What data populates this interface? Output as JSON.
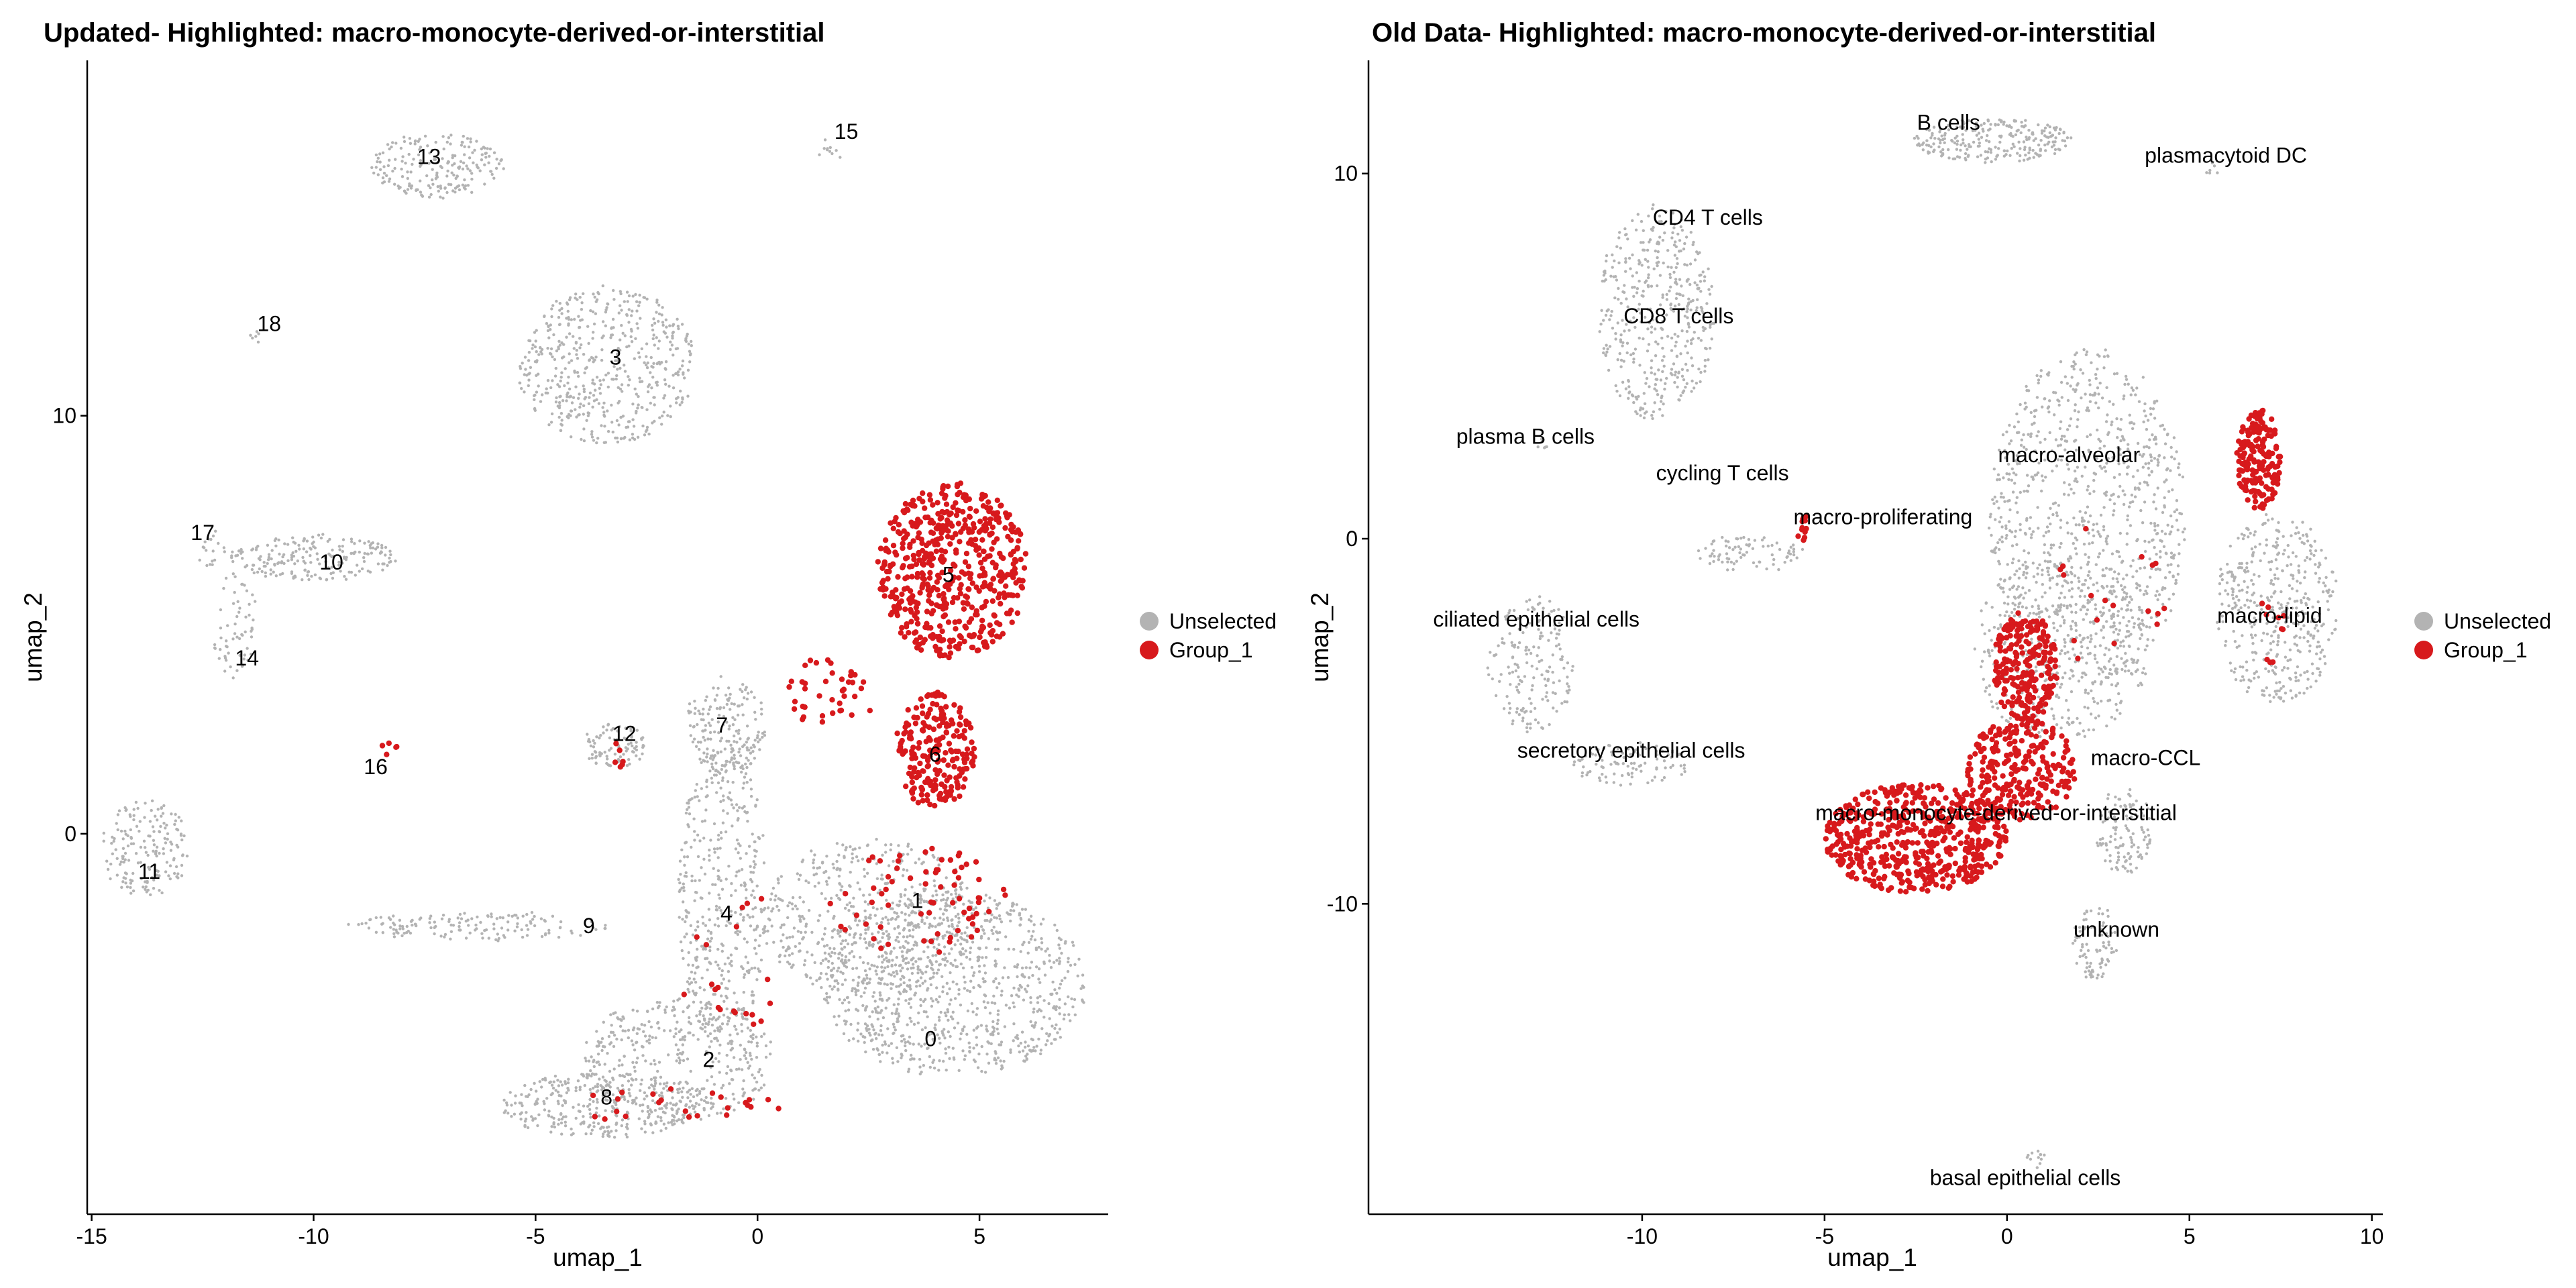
{
  "chart_data": [
    {
      "type": "scatter",
      "title": "Updated- Highlighted: macro-monocyte-derived-or-interstitial",
      "xlabel": "umap_1",
      "ylabel": "umap_2",
      "xlim": [
        -15.1,
        7.9
      ],
      "ylim": [
        -9.1,
        18.5
      ],
      "xticks": [
        -15,
        -10,
        -5,
        0,
        5
      ],
      "yticks": [
        0,
        10
      ],
      "grid": false,
      "legend": {
        "position": "right",
        "entries": [
          {
            "name": "Unselected",
            "color": "#b3b3b3"
          },
          {
            "name": "Group_1",
            "color": "#d7191c"
          }
        ]
      },
      "cluster_labels": [
        {
          "text": "0",
          "x": 3.9,
          "y": -4.9
        },
        {
          "text": "1",
          "x": 3.6,
          "y": -1.6
        },
        {
          "text": "2",
          "x": -1.1,
          "y": -5.4
        },
        {
          "text": "3",
          "x": -3.2,
          "y": 11.4
        },
        {
          "text": "4",
          "x": -0.7,
          "y": -1.9
        },
        {
          "text": "5",
          "x": 4.3,
          "y": 6.2
        },
        {
          "text": "6",
          "x": 4.0,
          "y": 1.9
        },
        {
          "text": "7",
          "x": -0.8,
          "y": 2.6
        },
        {
          "text": "8",
          "x": -3.4,
          "y": -6.3
        },
        {
          "text": "9",
          "x": -3.8,
          "y": -2.2
        },
        {
          "text": "10",
          "x": -9.6,
          "y": 6.5
        },
        {
          "text": "11",
          "x": -13.7,
          "y": -0.9
        },
        {
          "text": "12",
          "x": -3.0,
          "y": 2.4
        },
        {
          "text": "13",
          "x": -7.4,
          "y": 16.2
        },
        {
          "text": "14",
          "x": -11.5,
          "y": 4.2
        },
        {
          "text": "15",
          "x": 2.0,
          "y": 16.8
        },
        {
          "text": "16",
          "x": -8.6,
          "y": 1.6
        },
        {
          "text": "17",
          "x": -12.5,
          "y": 7.2
        },
        {
          "text": "18",
          "x": -11.0,
          "y": 12.2
        }
      ],
      "clusters_unselected": [
        {
          "cx": 4.4,
          "cy": -3.6,
          "rx": 3.0,
          "ry": 2.2,
          "n": 900
        },
        {
          "cx": 2.5,
          "cy": -2.0,
          "rx": 2.4,
          "ry": 1.9,
          "n": 500
        },
        {
          "cx": -0.8,
          "cy": -1.5,
          "rx": 1.0,
          "ry": 3.6,
          "n": 420
        },
        {
          "cx": -0.7,
          "cy": 2.6,
          "rx": 0.9,
          "ry": 1.2,
          "n": 180
        },
        {
          "cx": -1.8,
          "cy": -5.4,
          "rx": 2.2,
          "ry": 1.5,
          "n": 380
        },
        {
          "cx": -3.5,
          "cy": -6.5,
          "rx": 2.3,
          "ry": 0.8,
          "n": 320
        },
        {
          "cx": -3.4,
          "cy": 11.2,
          "rx": 2.0,
          "ry": 1.9,
          "n": 520
        },
        {
          "cx": -6.3,
          "cy": -2.2,
          "rx": 3.0,
          "ry": 0.35,
          "n": 150
        },
        {
          "cx": -3.2,
          "cy": 2.1,
          "rx": 0.7,
          "ry": 0.55,
          "n": 90
        },
        {
          "cx": -10.0,
          "cy": 6.6,
          "rx": 1.9,
          "ry": 0.55,
          "n": 200
        },
        {
          "cx": -13.8,
          "cy": -0.3,
          "rx": 1.0,
          "ry": 1.2,
          "n": 170
        },
        {
          "cx": -7.2,
          "cy": 16.0,
          "rx": 1.5,
          "ry": 0.8,
          "n": 200
        },
        {
          "cx": -11.8,
          "cy": 5.0,
          "rx": 0.5,
          "ry": 1.3,
          "n": 60
        },
        {
          "cx": 1.6,
          "cy": 16.3,
          "rx": 0.3,
          "ry": 0.3,
          "n": 10
        },
        {
          "cx": -12.3,
          "cy": 6.8,
          "rx": 0.3,
          "ry": 0.5,
          "n": 18
        },
        {
          "cx": -11.3,
          "cy": 11.9,
          "rx": 0.15,
          "ry": 0.15,
          "n": 6
        }
      ],
      "clusters_selected": [
        {
          "cx": 4.4,
          "cy": 6.3,
          "rx": 1.7,
          "ry": 2.1,
          "n": 550
        },
        {
          "cx": 4.0,
          "cy": 2.0,
          "rx": 0.9,
          "ry": 1.4,
          "n": 220
        },
        {
          "cx": 3.6,
          "cy": -1.6,
          "rx": 2.0,
          "ry": 1.3,
          "n": 70
        },
        {
          "cx": 1.6,
          "cy": 3.4,
          "rx": 1.2,
          "ry": 0.8,
          "n": 40
        },
        {
          "cx": -2.0,
          "cy": -6.5,
          "rx": 2.6,
          "ry": 0.4,
          "n": 24
        },
        {
          "cx": -3.1,
          "cy": 1.8,
          "rx": 0.2,
          "ry": 0.4,
          "n": 6
        },
        {
          "cx": -8.3,
          "cy": 2.0,
          "rx": 0.2,
          "ry": 0.2,
          "n": 5
        },
        {
          "cx": -0.4,
          "cy": -3.0,
          "rx": 1.5,
          "ry": 1.6,
          "n": 20
        }
      ]
    },
    {
      "type": "scatter",
      "title": "Old Data- Highlighted: macro-monocyte-derived-or-interstitial",
      "xlabel": "umap_1",
      "ylabel": "umap_2",
      "xlim": [
        -17.5,
        10.3
      ],
      "ylim": [
        -18.5,
        13.1
      ],
      "xticks": [
        -10,
        -5,
        0,
        5,
        10
      ],
      "yticks": [
        -10,
        0,
        10
      ],
      "grid": false,
      "legend": {
        "position": "right",
        "entries": [
          {
            "name": "Unselected",
            "color": "#b3b3b3"
          },
          {
            "name": "Group_1",
            "color": "#d7191c"
          }
        ]
      },
      "cluster_labels": [
        {
          "text": "B cells",
          "x": -1.6,
          "y": 11.4
        },
        {
          "text": "plasmacytoid DC",
          "x": 6.0,
          "y": 10.5
        },
        {
          "text": "CD4 T cells",
          "x": -8.2,
          "y": 8.8
        },
        {
          "text": "CD8 T cells",
          "x": -9.0,
          "y": 6.1
        },
        {
          "text": "plasma B cells",
          "x": -13.2,
          "y": 2.8
        },
        {
          "text": "cycling T cells",
          "x": -7.8,
          "y": 1.8
        },
        {
          "text": "macro-alveolar",
          "x": 1.7,
          "y": 2.3
        },
        {
          "text": "macro-proliferating",
          "x": -3.4,
          "y": 0.6
        },
        {
          "text": "ciliated epithelial cells",
          "x": -12.9,
          "y": -2.2
        },
        {
          "text": "macro-lipid",
          "x": 7.2,
          "y": -2.1
        },
        {
          "text": "secretory epithelial cells",
          "x": -10.3,
          "y": -5.8
        },
        {
          "text": "macro-CCL",
          "x": 3.8,
          "y": -6.0
        },
        {
          "text": "macro-monocyte-derived-or-interstitial",
          "x": -0.3,
          "y": -7.5
        },
        {
          "text": "unknown",
          "x": 3.0,
          "y": -10.7
        },
        {
          "text": "basal epithelial cells",
          "x": 0.5,
          "y": -17.5
        }
      ],
      "clusters_unselected": [
        {
          "cx": 2.2,
          "cy": 0.5,
          "rx": 2.7,
          "ry": 4.8,
          "n": 900
        },
        {
          "cx": 1.5,
          "cy": -3.0,
          "rx": 2.4,
          "ry": 2.6,
          "n": 350
        },
        {
          "cx": 7.4,
          "cy": -1.9,
          "rx": 1.7,
          "ry": 2.6,
          "n": 420
        },
        {
          "cx": -9.6,
          "cy": 6.2,
          "rx": 1.6,
          "ry": 3.0,
          "n": 420
        },
        {
          "cx": -0.4,
          "cy": 10.9,
          "rx": 2.2,
          "ry": 0.6,
          "n": 250
        },
        {
          "cx": -13.0,
          "cy": -3.4,
          "rx": 1.2,
          "ry": 1.9,
          "n": 170
        },
        {
          "cx": -10.3,
          "cy": -6.2,
          "rx": 1.6,
          "ry": 0.6,
          "n": 100
        },
        {
          "cx": -7.0,
          "cy": -0.4,
          "rx": 1.5,
          "ry": 0.5,
          "n": 80
        },
        {
          "cx": 3.2,
          "cy": -8.0,
          "rx": 0.8,
          "ry": 1.2,
          "n": 120
        },
        {
          "cx": 2.4,
          "cy": -11.0,
          "rx": 0.6,
          "ry": 1.1,
          "n": 80
        },
        {
          "cx": 0.8,
          "cy": -17.0,
          "rx": 0.3,
          "ry": 0.3,
          "n": 12
        },
        {
          "cx": 5.6,
          "cy": 10.1,
          "rx": 0.2,
          "ry": 0.2,
          "n": 6
        },
        {
          "cx": -12.7,
          "cy": 2.6,
          "rx": 0.2,
          "ry": 0.2,
          "n": 6
        }
      ],
      "clusters_selected": [
        {
          "cx": -2.5,
          "cy": -8.2,
          "rx": 2.5,
          "ry": 1.5,
          "n": 550
        },
        {
          "cx": 0.4,
          "cy": -6.3,
          "rx": 1.5,
          "ry": 1.4,
          "n": 260
        },
        {
          "cx": 0.5,
          "cy": -3.5,
          "rx": 0.9,
          "ry": 1.5,
          "n": 230
        },
        {
          "cx": 6.9,
          "cy": 2.2,
          "rx": 0.6,
          "ry": 1.4,
          "n": 170
        },
        {
          "cx": -5.6,
          "cy": 0.3,
          "rx": 0.2,
          "ry": 0.35,
          "n": 12
        },
        {
          "cx": 7.2,
          "cy": -2.5,
          "rx": 0.5,
          "ry": 1.0,
          "n": 10
        },
        {
          "cx": 2.6,
          "cy": -1.5,
          "rx": 1.8,
          "ry": 2.0,
          "n": 18
        }
      ]
    }
  ]
}
